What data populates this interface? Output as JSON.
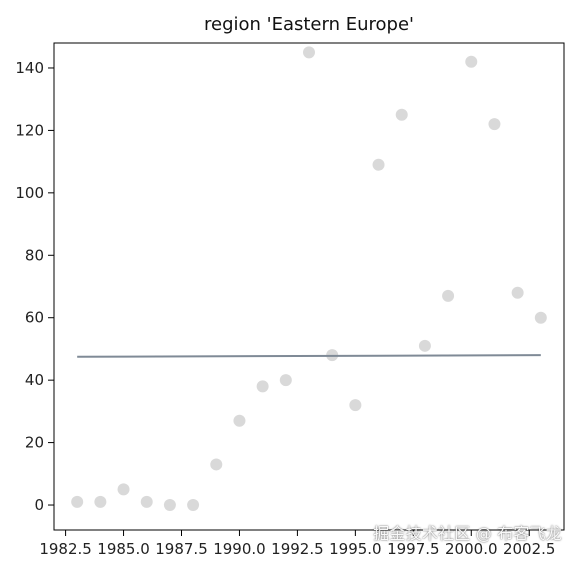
{
  "chart_data": {
    "type": "scatter",
    "title": "region 'Eastern Europe'",
    "xlabel": "",
    "ylabel": "",
    "xlim": [
      1982.0,
      2004.0
    ],
    "ylim": [
      -8,
      148
    ],
    "x_ticks": [
      1982.5,
      1985.0,
      1987.5,
      1990.0,
      1992.5,
      1995.0,
      1997.5,
      2000.0,
      2002.5
    ],
    "x_tick_labels": [
      "1982.5",
      "1985.0",
      "1987.5",
      "1990.0",
      "1992.5",
      "1995.0",
      "1997.5",
      "2000.0",
      "2002.5"
    ],
    "y_ticks": [
      0,
      20,
      40,
      60,
      80,
      100,
      120,
      140
    ],
    "y_tick_labels": [
      "0",
      "20",
      "40",
      "60",
      "80",
      "100",
      "120",
      "140"
    ],
    "grid": false,
    "series": [
      {
        "kind": "scatter",
        "x": [
          1983,
          1984,
          1985,
          1986,
          1987,
          1988,
          1989,
          1990,
          1991,
          1992,
          1993,
          1994,
          1995,
          1996,
          1997,
          1998,
          1999,
          2000,
          2001,
          2002,
          2003
        ],
        "y": [
          1,
          1,
          5,
          1,
          0,
          0,
          13,
          27,
          38,
          40,
          145,
          48,
          32,
          109,
          125,
          51,
          67,
          142,
          122,
          68,
          60
        ],
        "color": "#d9d9d9"
      },
      {
        "kind": "line",
        "x": [
          1983,
          2003
        ],
        "y": [
          47.5,
          48.0
        ],
        "color": "#7f8a96"
      }
    ],
    "watermark": "掘金技术社区 @ 布客飞龙"
  }
}
